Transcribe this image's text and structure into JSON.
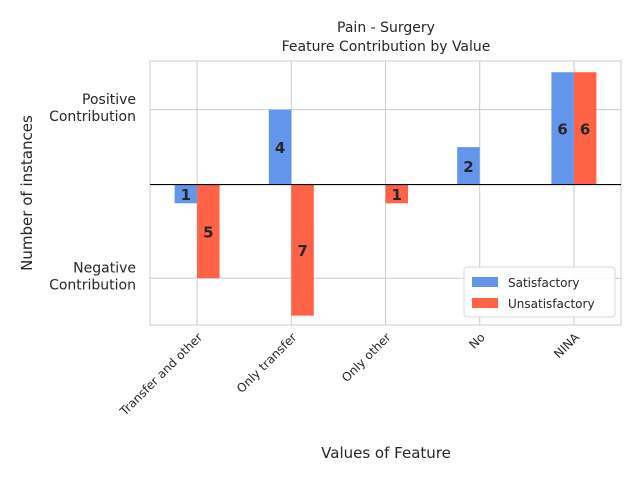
{
  "chart_data": {
    "type": "bar",
    "title": "Pain - Surgery",
    "subtitle": "Feature Contribution by Value",
    "xlabel": "Values of Feature",
    "ylabel": "Number of instances",
    "ytick_labels": [
      "Positive\nContribution",
      "Negative\nContribution"
    ],
    "categories": [
      "Transfer and other",
      "Only transfer",
      "Only other",
      "No",
      "NINA"
    ],
    "series": [
      {
        "name": "Satisfactory",
        "color": "#6495ED",
        "values": [
          -1,
          4,
          0,
          2,
          6
        ]
      },
      {
        "name": "Unsatisfactory",
        "color": "#FF6347",
        "values": [
          -5,
          -7,
          -1,
          0,
          6
        ]
      }
    ],
    "data_labels": [
      [
        "1",
        "4",
        null,
        "2",
        "6"
      ],
      [
        "5",
        "7",
        "1",
        null,
        "6"
      ]
    ],
    "ylim": [
      -7.5,
      6.6
    ],
    "grid": true,
    "legend_position": "lower right"
  }
}
